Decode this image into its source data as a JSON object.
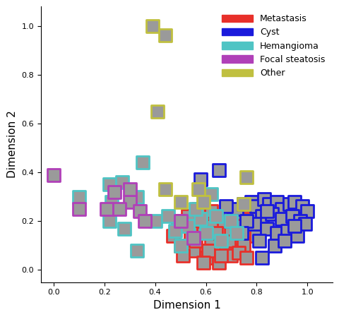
{
  "chart_data": {
    "type": "scatter",
    "x_label": "Dimension 1",
    "y_label": "Dimension 2",
    "xlim": [
      -0.05,
      1.1
    ],
    "xticks": [
      0.0,
      0.2,
      0.4,
      0.6,
      0.8,
      1.0
    ],
    "ylim": [
      -0.05,
      1.08
    ],
    "yticks": [
      0.0,
      0.2,
      0.4,
      0.6,
      0.8,
      1.0
    ],
    "grid": false,
    "legend": "upper right",
    "marker": "square",
    "series": [
      {
        "name": "Metastasis",
        "color": "#e8302a",
        "x": [
          0.47,
          0.5,
          0.52,
          0.55,
          0.57,
          0.6,
          0.62,
          0.65,
          0.68,
          0.7,
          0.72,
          0.75,
          0.78,
          0.53,
          0.58,
          0.63,
          0.67,
          0.71,
          0.74,
          0.77,
          0.8,
          0.49,
          0.56,
          0.61,
          0.64,
          0.69,
          0.73,
          0.66,
          0.59,
          0.54,
          0.62,
          0.7,
          0.76,
          0.57,
          0.51
        ],
        "y": [
          0.14,
          0.1,
          0.18,
          0.08,
          0.15,
          0.05,
          0.12,
          0.03,
          0.09,
          0.06,
          0.13,
          0.1,
          0.16,
          0.22,
          0.2,
          0.18,
          0.2,
          0.22,
          0.18,
          0.21,
          0.14,
          0.2,
          0.12,
          0.08,
          0.15,
          0.12,
          0.07,
          0.06,
          0.03,
          0.15,
          0.24,
          0.17,
          0.05,
          0.25,
          0.06
        ]
      },
      {
        "name": "Cyst",
        "color": "#1a1adc",
        "x": [
          0.72,
          0.75,
          0.78,
          0.8,
          0.83,
          0.85,
          0.88,
          0.9,
          0.93,
          0.95,
          0.98,
          1.0,
          0.82,
          0.86,
          0.9,
          0.94,
          0.97,
          0.79,
          0.84,
          0.88,
          0.92,
          0.96,
          0.99,
          0.76,
          0.81,
          0.87,
          0.91,
          0.95,
          0.68,
          0.7,
          0.65,
          0.58,
          0.82,
          0.74,
          0.84
        ],
        "y": [
          0.25,
          0.27,
          0.28,
          0.26,
          0.29,
          0.27,
          0.28,
          0.25,
          0.27,
          0.28,
          0.26,
          0.24,
          0.22,
          0.23,
          0.21,
          0.22,
          0.2,
          0.19,
          0.17,
          0.15,
          0.16,
          0.14,
          0.19,
          0.2,
          0.12,
          0.1,
          0.12,
          0.18,
          0.26,
          0.2,
          0.41,
          0.37,
          0.05,
          0.15,
          0.24
        ]
      },
      {
        "name": "Hemangioma",
        "color": "#4fc4c4",
        "x": [
          0.1,
          0.22,
          0.27,
          0.22,
          0.35,
          0.23,
          0.33,
          0.28,
          0.4,
          0.45,
          0.33,
          0.48,
          0.53,
          0.58,
          0.62,
          0.64,
          0.66,
          0.6,
          0.56,
          0.7,
          0.5,
          0.72
        ],
        "y": [
          0.3,
          0.35,
          0.36,
          0.2,
          0.44,
          0.28,
          0.3,
          0.17,
          0.2,
          0.22,
          0.08,
          0.16,
          0.18,
          0.21,
          0.31,
          0.22,
          0.12,
          0.15,
          0.25,
          0.2,
          0.1,
          0.15
        ]
      },
      {
        "name": "Focal steatosis",
        "color": "#b040b8",
        "x": [
          0.0,
          0.1,
          0.21,
          0.3,
          0.3,
          0.26,
          0.34,
          0.36,
          0.55,
          0.5,
          0.24
        ],
        "y": [
          0.39,
          0.25,
          0.25,
          0.28,
          0.33,
          0.25,
          0.24,
          0.2,
          0.13,
          0.2,
          0.32
        ]
      },
      {
        "name": "Other",
        "color": "#c0c040",
        "x": [
          0.39,
          0.44,
          0.41,
          0.44,
          0.57,
          0.76,
          0.59,
          0.5,
          0.75
        ],
        "y": [
          1.0,
          0.96,
          0.65,
          0.33,
          0.33,
          0.38,
          0.28,
          0.28,
          0.27
        ]
      }
    ]
  }
}
